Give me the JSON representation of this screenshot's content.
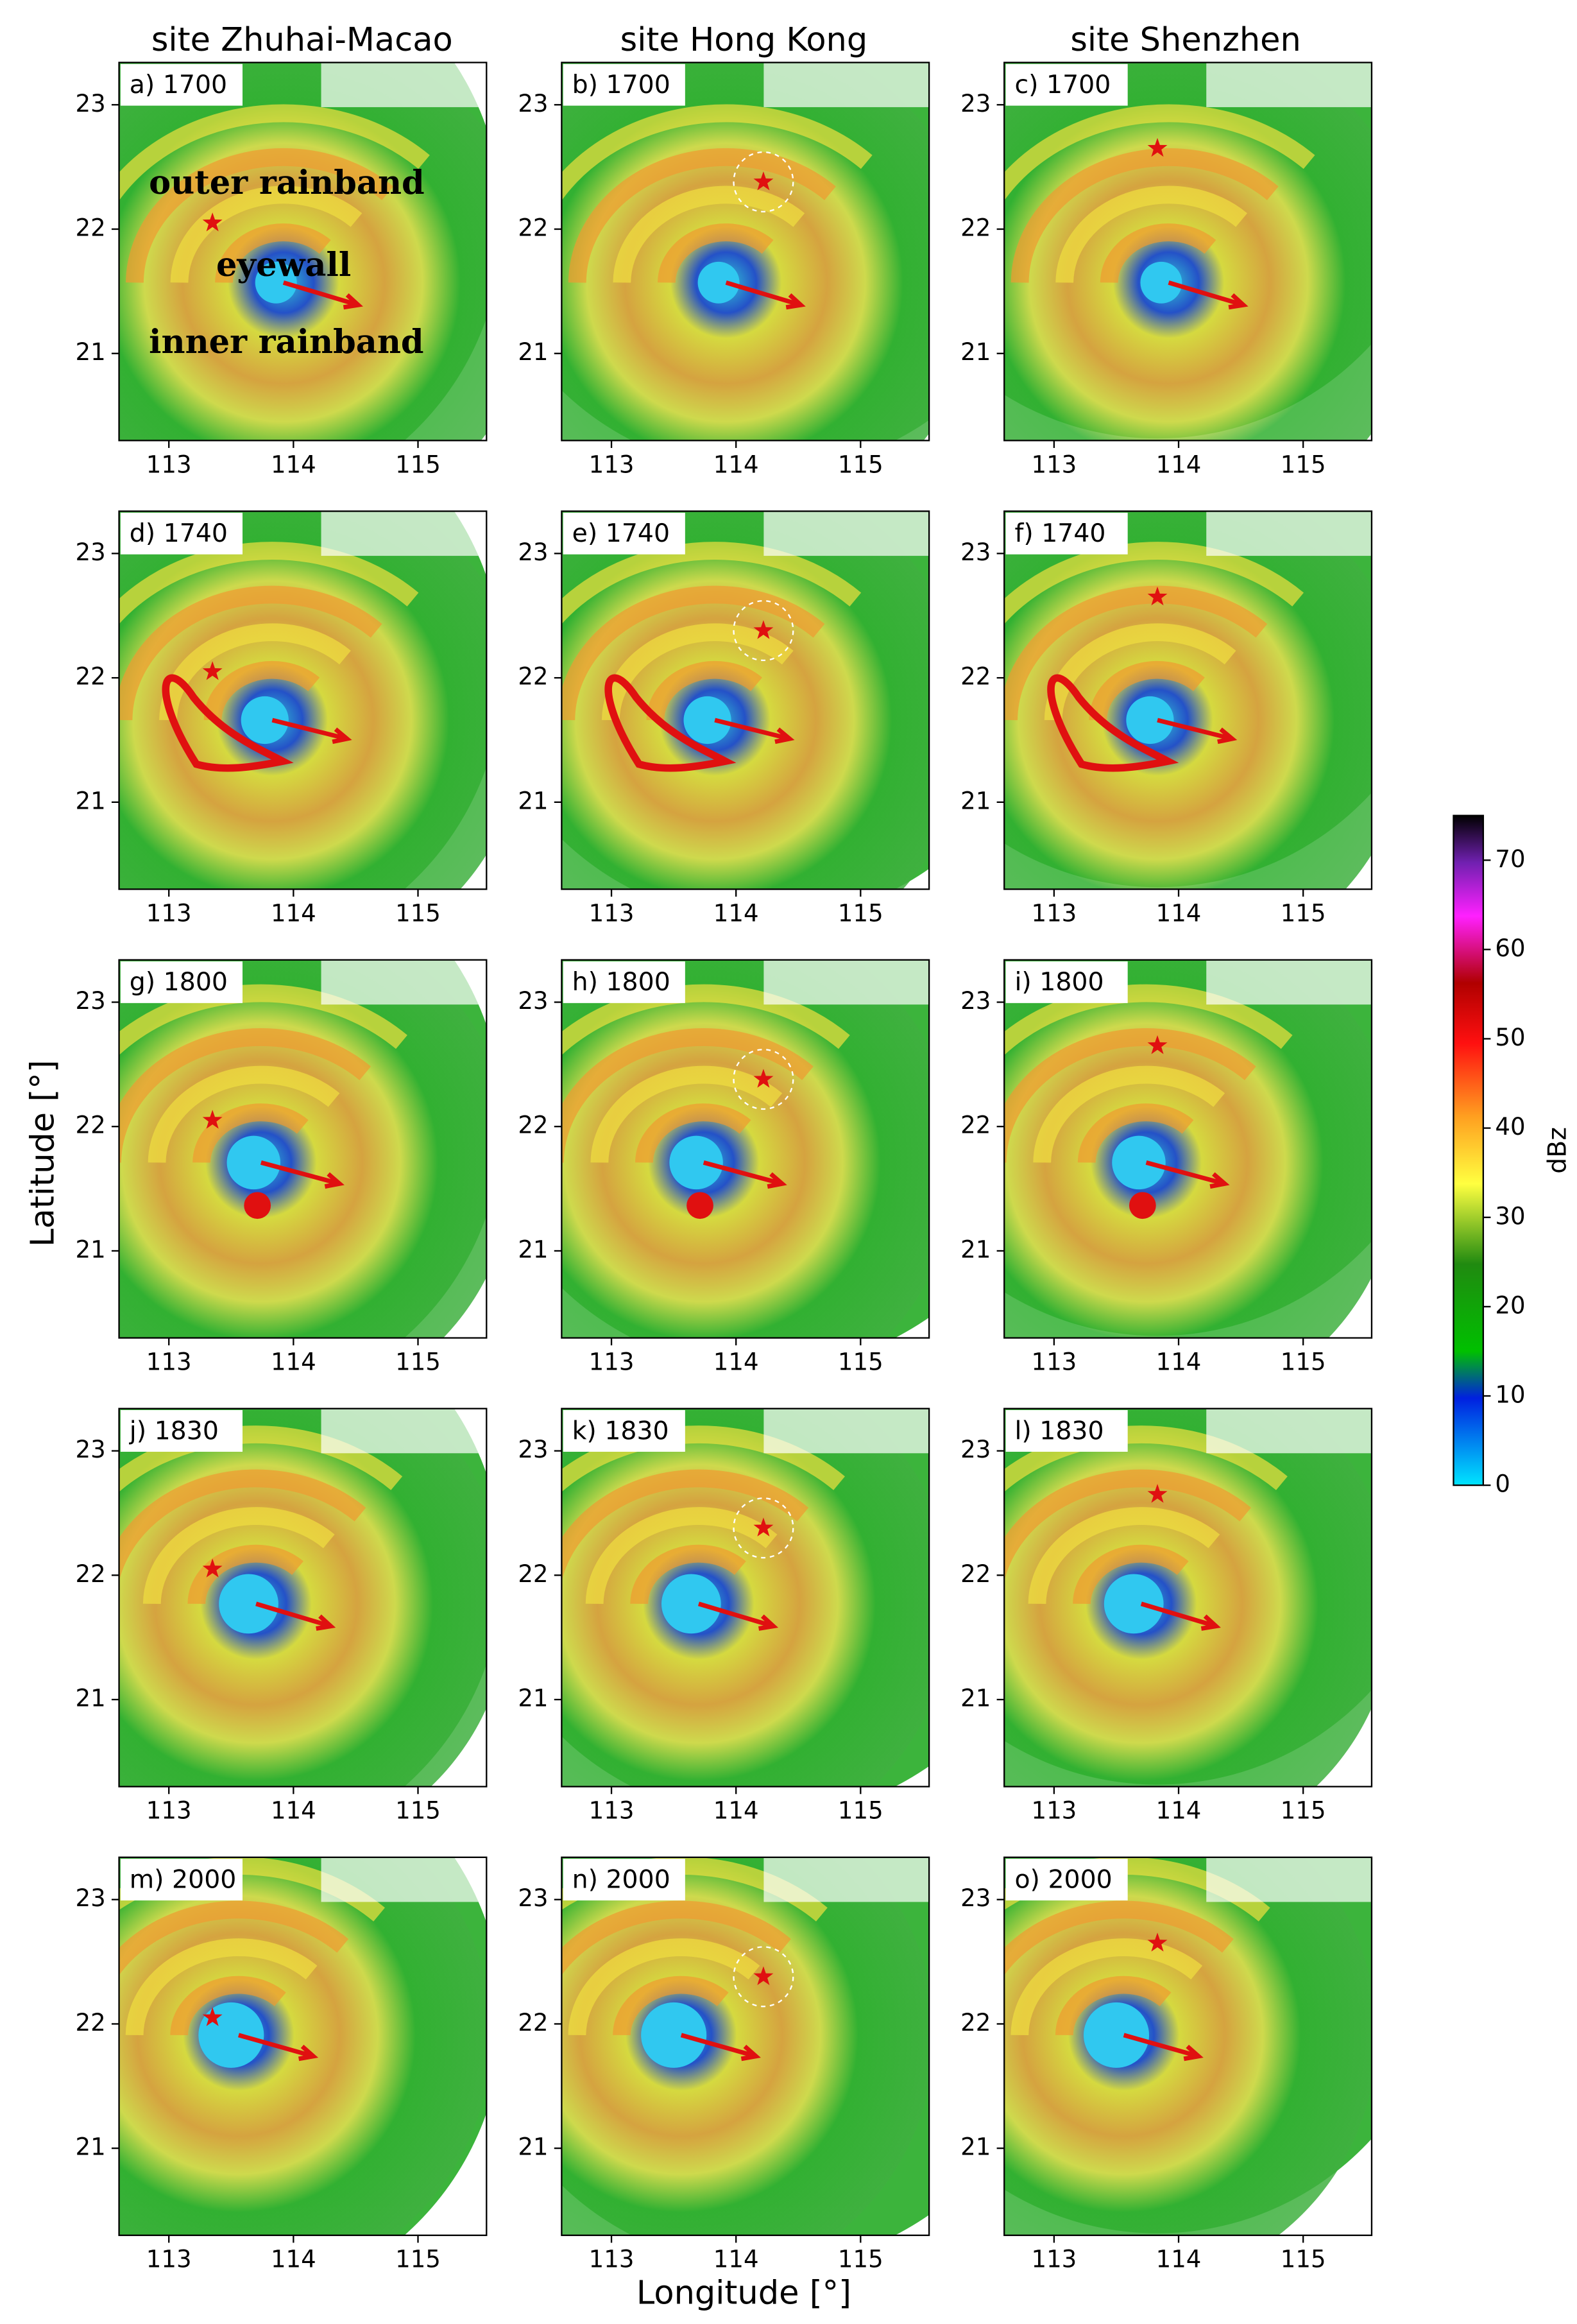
{
  "figure": {
    "column_titles": [
      "site Zhuhai-Macao",
      "site Hong Kong",
      "site Shenzhen"
    ],
    "xlabel": "Longitude [°]",
    "ylabel": "Latitude [°]"
  },
  "chart_data": [
    {
      "type": "radar",
      "title": "a) 1700",
      "xlim": [
        112.6,
        115.55
      ],
      "ylim": [
        20.3,
        23.34
      ],
      "xticks": [
        113,
        114,
        115
      ],
      "yticks": [
        21,
        22,
        23
      ],
      "site": [
        113.35,
        22.05
      ],
      "arrow": [
        113.92,
        21.57,
        114.52,
        21.39
      ],
      "annotations": [
        {
          "text": "outer rainband",
          "x": 112.84,
          "y": 22.35
        },
        {
          "text": "eyewall",
          "x": 113.38,
          "y": 21.69
        },
        {
          "text": "inner rainband",
          "x": 112.84,
          "y": 21.07
        }
      ]
    },
    {
      "type": "radar",
      "title": "b) 1700",
      "xlim": [
        112.6,
        115.55
      ],
      "ylim": [
        20.3,
        23.34
      ],
      "xticks": [
        113,
        114,
        115
      ],
      "yticks": [
        21,
        22,
        23
      ],
      "site": [
        114.22,
        22.38
      ],
      "arrow": [
        113.92,
        21.57,
        114.52,
        21.39
      ]
    },
    {
      "type": "radar",
      "title": "c) 1700",
      "xlim": [
        112.6,
        115.55
      ],
      "ylim": [
        20.3,
        23.34
      ],
      "xticks": [
        113,
        114,
        115
      ],
      "yticks": [
        21,
        22,
        23
      ],
      "site": [
        113.83,
        22.65
      ],
      "arrow": [
        113.92,
        21.57,
        114.52,
        21.39
      ]
    },
    {
      "type": "radar",
      "title": "d) 1740",
      "xlim": [
        112.6,
        115.55
      ],
      "ylim": [
        20.3,
        23.34
      ],
      "xticks": [
        113,
        114,
        115
      ],
      "yticks": [
        21,
        22,
        23
      ],
      "site": [
        113.35,
        22.05
      ],
      "arrow": [
        113.83,
        21.66,
        114.43,
        21.51
      ]
    },
    {
      "type": "radar",
      "title": "e) 1740",
      "xlim": [
        112.6,
        115.55
      ],
      "ylim": [
        20.3,
        23.34
      ],
      "xticks": [
        113,
        114,
        115
      ],
      "yticks": [
        21,
        22,
        23
      ],
      "site": [
        114.22,
        22.38
      ],
      "arrow": [
        113.83,
        21.66,
        114.43,
        21.51
      ]
    },
    {
      "type": "radar",
      "title": "f) 1740",
      "xlim": [
        112.6,
        115.55
      ],
      "ylim": [
        20.3,
        23.34
      ],
      "xticks": [
        113,
        114,
        115
      ],
      "yticks": [
        21,
        22,
        23
      ],
      "site": [
        113.83,
        22.65
      ],
      "arrow": [
        113.83,
        21.66,
        114.43,
        21.51
      ]
    },
    {
      "type": "radar",
      "title": "g) 1800",
      "xlim": [
        112.6,
        115.55
      ],
      "ylim": [
        20.3,
        23.34
      ],
      "xticks": [
        113,
        114,
        115
      ],
      "yticks": [
        21,
        22,
        23
      ],
      "site": [
        113.35,
        22.05
      ],
      "arrow": [
        113.74,
        21.71,
        114.37,
        21.54
      ]
    },
    {
      "type": "radar",
      "title": "h) 1800",
      "xlim": [
        112.6,
        115.55
      ],
      "ylim": [
        20.3,
        23.34
      ],
      "xticks": [
        113,
        114,
        115
      ],
      "yticks": [
        21,
        22,
        23
      ],
      "site": [
        114.22,
        22.38
      ],
      "arrow": [
        113.74,
        21.71,
        114.37,
        21.54
      ]
    },
    {
      "type": "radar",
      "title": "i) 1800",
      "xlim": [
        112.6,
        115.55
      ],
      "ylim": [
        20.3,
        23.34
      ],
      "xticks": [
        113,
        114,
        115
      ],
      "yticks": [
        21,
        22,
        23
      ],
      "site": [
        113.83,
        22.65
      ],
      "arrow": [
        113.74,
        21.71,
        114.37,
        21.54
      ]
    },
    {
      "type": "radar",
      "title": "j) 1830",
      "xlim": [
        112.6,
        115.55
      ],
      "ylim": [
        20.3,
        23.34
      ],
      "xticks": [
        113,
        114,
        115
      ],
      "yticks": [
        21,
        22,
        23
      ],
      "site": [
        113.35,
        22.05
      ],
      "arrow": [
        113.7,
        21.77,
        114.3,
        21.59
      ]
    },
    {
      "type": "radar",
      "title": "k) 1830",
      "xlim": [
        112.6,
        115.55
      ],
      "ylim": [
        20.3,
        23.34
      ],
      "xticks": [
        113,
        114,
        115
      ],
      "yticks": [
        21,
        22,
        23
      ],
      "site": [
        114.22,
        22.38
      ],
      "arrow": [
        113.7,
        21.77,
        114.3,
        21.59
      ]
    },
    {
      "type": "radar",
      "title": "l) 1830",
      "xlim": [
        112.6,
        115.55
      ],
      "ylim": [
        20.3,
        23.34
      ],
      "xticks": [
        113,
        114,
        115
      ],
      "yticks": [
        21,
        22,
        23
      ],
      "site": [
        113.83,
        22.65
      ],
      "arrow": [
        113.7,
        21.77,
        114.3,
        21.59
      ]
    },
    {
      "type": "radar",
      "title": "m) 2000",
      "xlim": [
        112.6,
        115.55
      ],
      "ylim": [
        20.3,
        23.34
      ],
      "xticks": [
        113,
        114,
        115
      ],
      "yticks": [
        21,
        22,
        23
      ],
      "site": [
        113.35,
        22.05
      ],
      "arrow": [
        113.56,
        21.91,
        114.16,
        21.74
      ]
    },
    {
      "type": "radar",
      "title": "n) 2000",
      "xlim": [
        112.6,
        115.55
      ],
      "ylim": [
        20.3,
        23.34
      ],
      "xticks": [
        113,
        114,
        115
      ],
      "yticks": [
        21,
        22,
        23
      ],
      "site": [
        114.22,
        22.38
      ],
      "arrow": [
        113.56,
        21.91,
        114.16,
        21.74
      ]
    },
    {
      "type": "radar",
      "title": "o) 2000",
      "xlim": [
        112.6,
        115.55
      ],
      "ylim": [
        20.3,
        23.34
      ],
      "xticks": [
        113,
        114,
        115
      ],
      "yticks": [
        21,
        22,
        23
      ],
      "site": [
        113.83,
        22.65
      ],
      "arrow": [
        113.56,
        21.91,
        114.16,
        21.74
      ]
    },
    {
      "type": "colorbar",
      "label": "dBz",
      "ylim": [
        0,
        75
      ],
      "yticks": [
        0,
        10,
        20,
        30,
        40,
        50,
        60,
        70
      ]
    }
  ]
}
